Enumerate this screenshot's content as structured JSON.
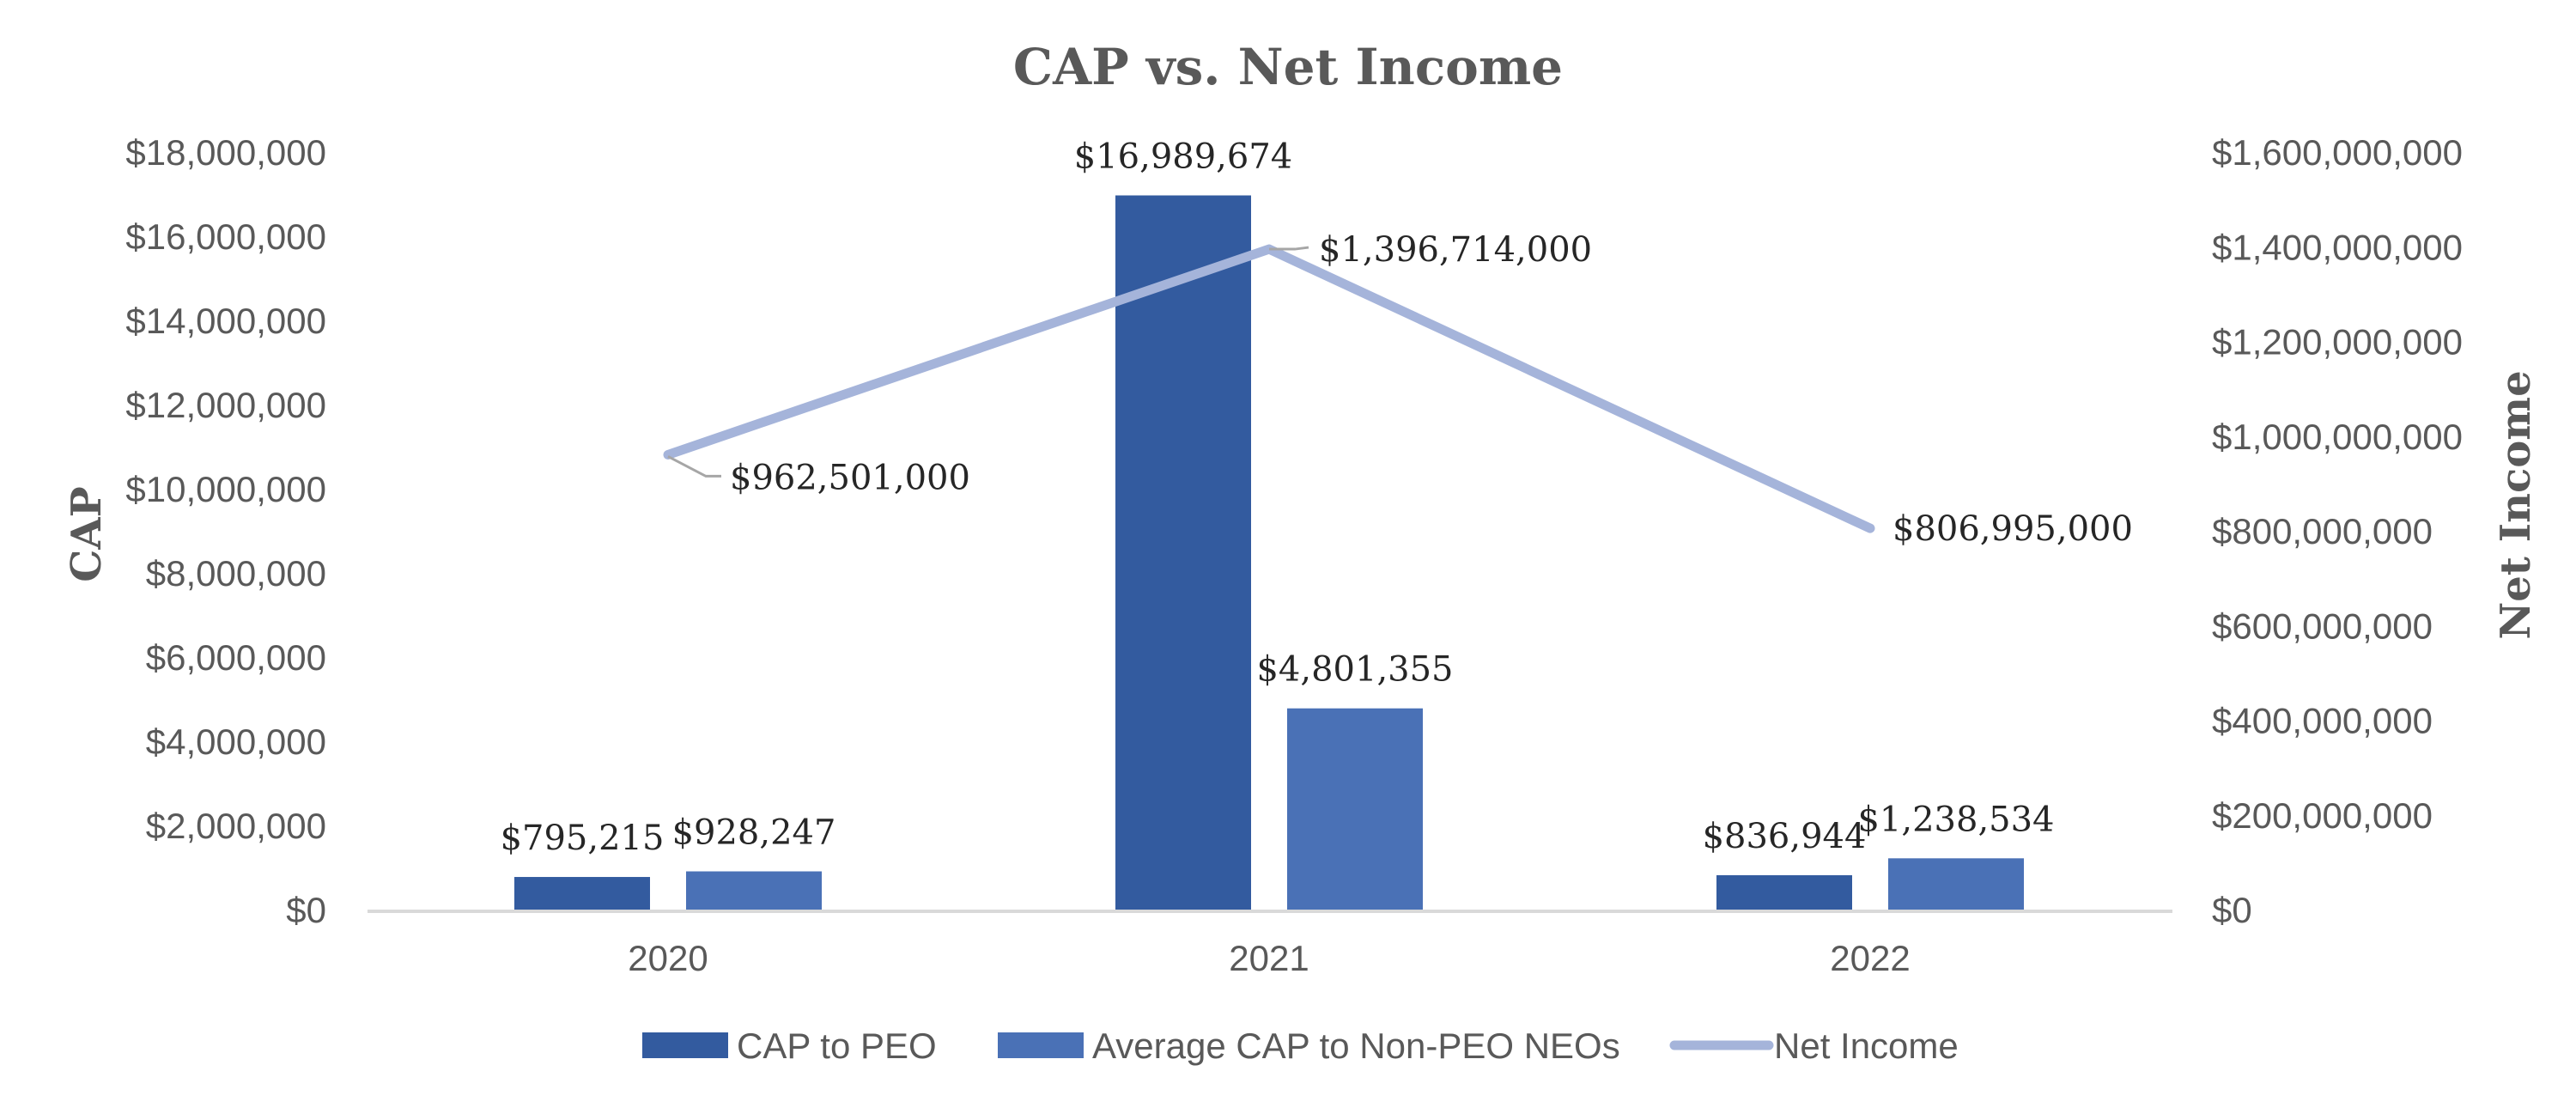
{
  "chart_data": {
    "type": "bar",
    "title": "CAP vs. Net Income",
    "categories": [
      "2020",
      "2021",
      "2022"
    ],
    "y_left": {
      "label": "CAP",
      "range": [
        0,
        18000000
      ],
      "ticks": [
        "$0",
        "$2,000,000",
        "$4,000,000",
        "$6,000,000",
        "$8,000,000",
        "$10,000,000",
        "$12,000,000",
        "$14,000,000",
        "$16,000,000",
        "$18,000,000"
      ]
    },
    "y_right": {
      "label": "Net Income",
      "range": [
        0,
        1600000000
      ],
      "ticks": [
        "$0",
        "$200,000,000",
        "$400,000,000",
        "$600,000,000",
        "$800,000,000",
        "$1,000,000,000",
        "$1,200,000,000",
        "$1,400,000,000",
        "$1,600,000,000"
      ]
    },
    "series": [
      {
        "name": "CAP to PEO",
        "kind": "bar",
        "axis": "left",
        "color": "#335B9F",
        "values": [
          795215,
          16989674,
          836944
        ],
        "labels": [
          "$795,215",
          "$16,989,674",
          "$836,944"
        ]
      },
      {
        "name": "Average CAP to Non-PEO NEOs",
        "kind": "bar",
        "axis": "left",
        "color": "#4A71B6",
        "values": [
          928247,
          4801355,
          1238534
        ],
        "labels": [
          "$928,247",
          "$4,801,355",
          "$1,238,534"
        ]
      },
      {
        "name": "Net Income",
        "kind": "line",
        "axis": "right",
        "color": "#A5B4DA",
        "values": [
          962501000,
          1396714000,
          806995000
        ],
        "labels": [
          "$962,501,000",
          "$1,396,714,000",
          "$806,995,000"
        ]
      }
    ],
    "grid": false,
    "legend": "bottom-center"
  },
  "colors": {
    "axis_line": "#D9D9D9",
    "leader_line": "#A6A6A6"
  }
}
